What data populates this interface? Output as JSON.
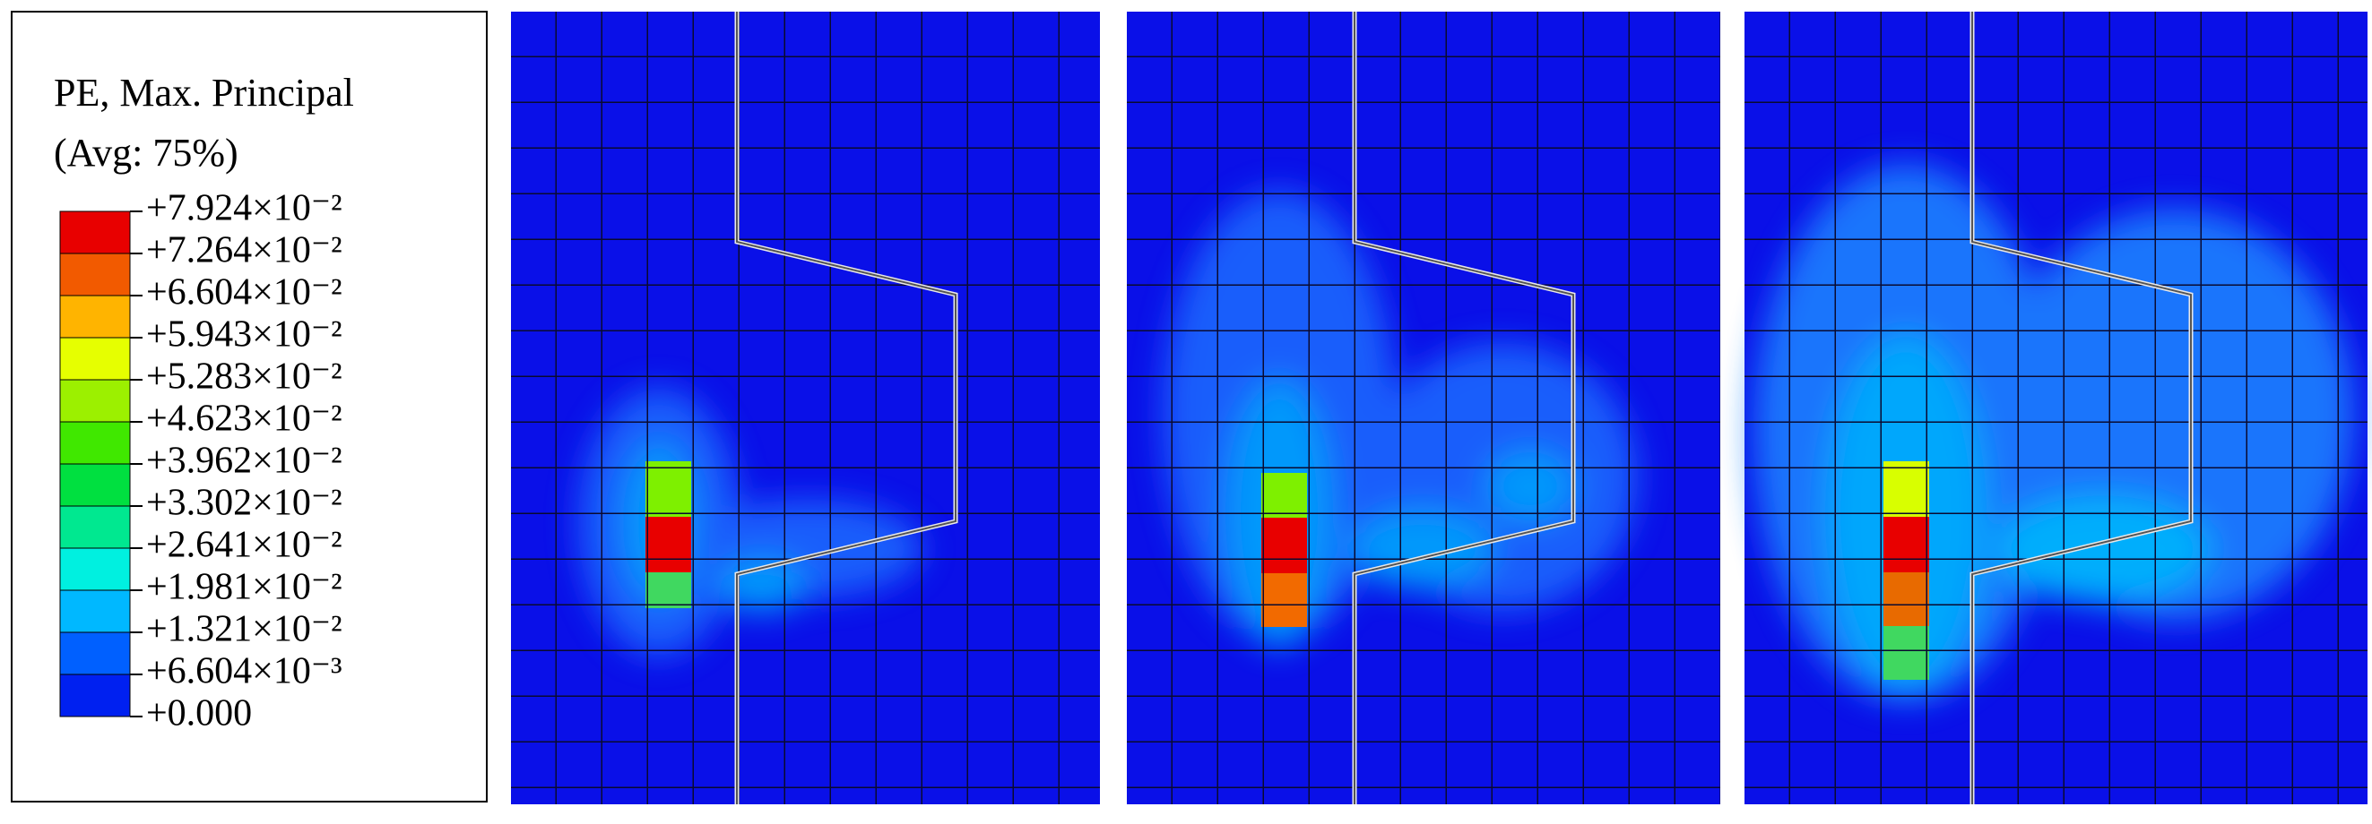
{
  "legend": {
    "title": "PE, Max. Principal",
    "subtitle": "(Avg: 75%)",
    "labels": [
      "+7.924×10⁻²",
      "+7.264×10⁻²",
      "+6.604×10⁻²",
      "+5.943×10⁻²",
      "+5.283×10⁻²",
      "+4.623×10⁻²",
      "+3.962×10⁻²",
      "+3.302×10⁻²",
      "+2.641×10⁻²",
      "+1.981×10⁻²",
      "+1.321×10⁻²",
      "+6.604×10⁻³",
      "+0.000"
    ],
    "colors": [
      "#e80000",
      "#f25a00",
      "#ffb400",
      "#e6ff00",
      "#9cf000",
      "#40e800",
      "#00e040",
      "#00e890",
      "#00f0e0",
      "#00b8ff",
      "#0060ff",
      "#0020f0"
    ]
  }
}
